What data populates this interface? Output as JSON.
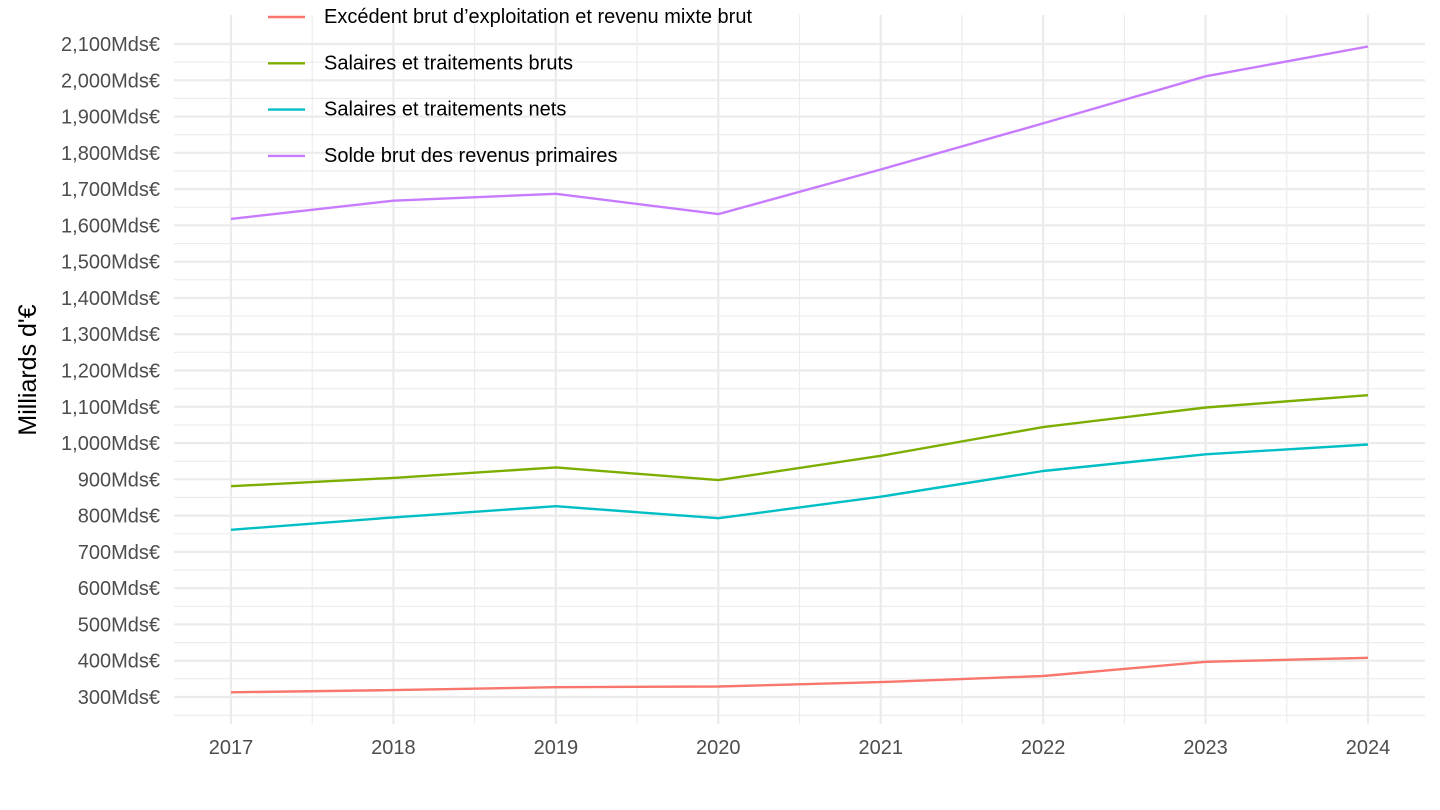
{
  "chart_data": {
    "type": "line",
    "title": "",
    "xlabel": "",
    "ylabel": "Milliards d'€",
    "x": [
      2017,
      2018,
      2019,
      2020,
      2021,
      2022,
      2023,
      2024
    ],
    "x_tick_labels": [
      "2017",
      "2018",
      "2019",
      "2020",
      "2021",
      "2022",
      "2023",
      "2024"
    ],
    "xlim": [
      2016.65,
      2024.35
    ],
    "ylim": [
      220,
      2130
    ],
    "y_ticks": [
      300,
      400,
      500,
      600,
      700,
      800,
      900,
      1000,
      1100,
      1200,
      1300,
      1400,
      1500,
      1600,
      1700,
      1800,
      1900,
      2000,
      2100
    ],
    "y_tick_labels": [
      "300Mds€",
      "400Mds€",
      "500Mds€",
      "600Mds€",
      "700Mds€",
      "800Mds€",
      "900Mds€",
      "1,000Mds€",
      "1,100Mds€",
      "1,200Mds€",
      "1,300Mds€",
      "1,400Mds€",
      "1,500Mds€",
      "1,600Mds€",
      "1,700Mds€",
      "1,800Mds€",
      "1,900Mds€",
      "2,000Mds€",
      "2,100Mds€"
    ],
    "grid": true,
    "legend_position": "top-left",
    "series": [
      {
        "name": "Excédent brut d’exploitation et revenu mixte brut",
        "color": "#F8766D",
        "values": [
          313,
          319,
          327,
          329,
          341,
          358,
          397,
          408
        ]
      },
      {
        "name": "Salaires et traitements bruts",
        "color": "#7CAE00",
        "values": [
          881,
          904,
          933,
          898,
          965,
          1044,
          1098,
          1132
        ]
      },
      {
        "name": "Salaires et traitements nets",
        "color": "#00BFC4",
        "values": [
          761,
          795,
          826,
          793,
          852,
          923,
          969,
          996
        ]
      },
      {
        "name": "Solde brut des revenus primaires",
        "color": "#C77CFF",
        "values": [
          1618,
          1668,
          1687,
          1631,
          1754,
          1881,
          2011,
          2093
        ]
      }
    ]
  }
}
